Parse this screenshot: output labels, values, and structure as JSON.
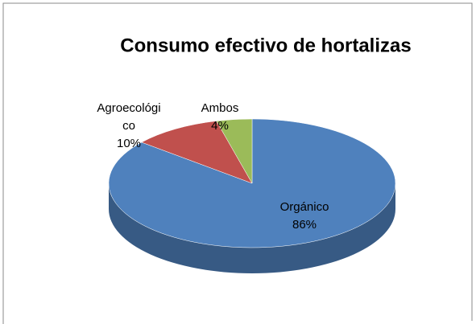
{
  "chart_data": {
    "type": "pie",
    "title": "Consumo efectivo de hortalizas",
    "categories": [
      "Orgánico",
      "Agroecológico",
      "Ambos"
    ],
    "values": [
      86,
      10,
      4
    ],
    "value_labels": [
      "86%",
      "10%",
      "4%"
    ],
    "colors": [
      "#4f81bd",
      "#c0504d",
      "#9bbb59"
    ]
  }
}
